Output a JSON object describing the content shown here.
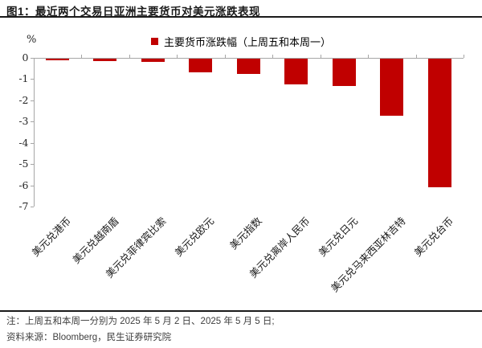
{
  "figure": {
    "title": "图1：最近两个交易日亚洲主要货币对美元涨跌表现",
    "notes": [
      "注：上周五和本周一分别为 2025 年 5 月 2 日、2025 年 5 月 5 日;",
      "资料来源：Bloomberg，民生证券研究院"
    ]
  },
  "chart_data": {
    "type": "bar",
    "title": "最近两个交易日亚洲主要货币对美元涨跌表现",
    "legend_label": "主要货币涨跌幅（上周五和本周一）",
    "legend_position": "top-center",
    "ylabel": "%",
    "categories": [
      "美元兑港币",
      "美元兑越南盾",
      "美元兑菲律宾比索",
      "美元兑欧元",
      "美元指数",
      "美元兑离岸人民币",
      "美元兑日元",
      "美元兑马来西亚林吉特",
      "美元兑台币"
    ],
    "values": [
      -0.07,
      -0.11,
      -0.16,
      -0.63,
      -0.72,
      -1.21,
      -1.3,
      -2.68,
      -6.05
    ],
    "ylim": [
      -7,
      0
    ],
    "yticks": [
      0,
      -1,
      -2,
      -3,
      -4,
      -5,
      -6,
      -7
    ],
    "grid": false,
    "bar_color": "#c00000",
    "axis_color": "#a6a6a6"
  }
}
